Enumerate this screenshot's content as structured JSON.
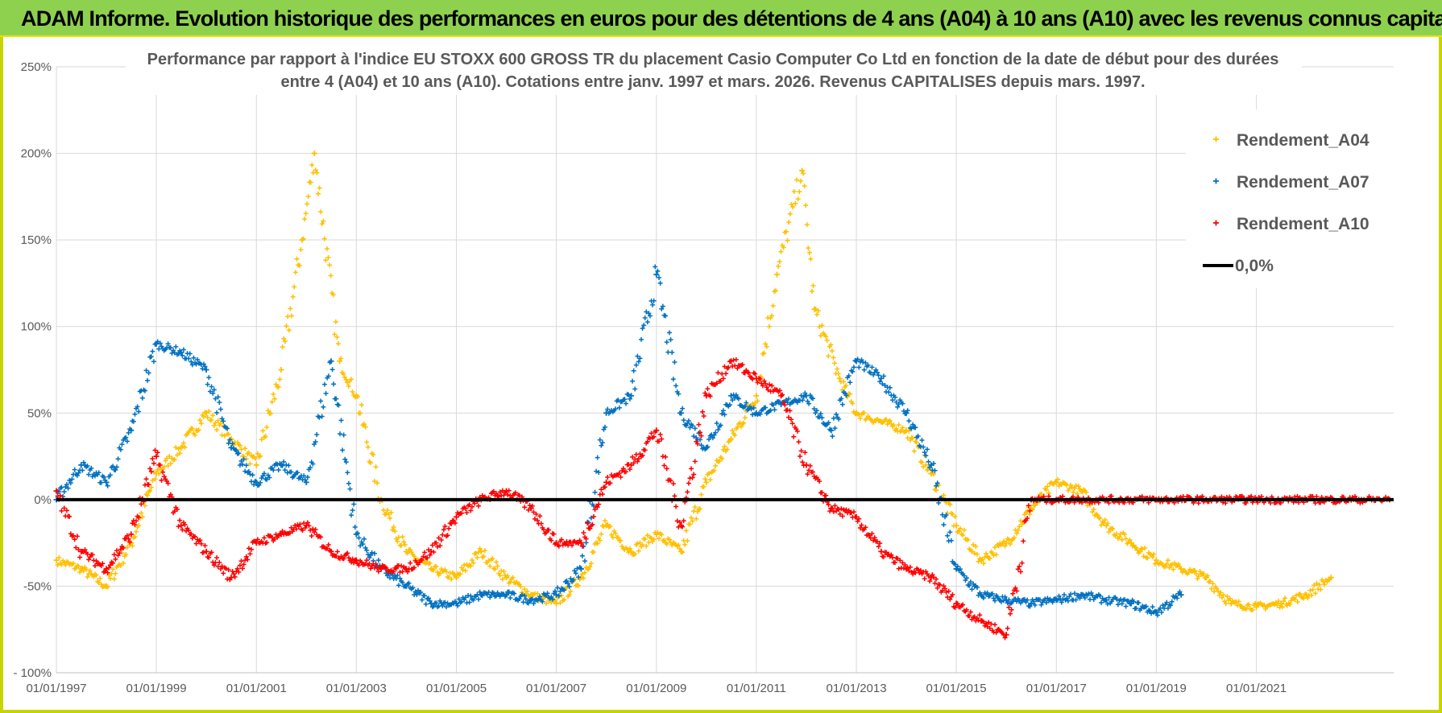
{
  "header": {
    "title": "ADAM Informe. Evolution historique des performances en euros pour des détentions de 4 ans (A04) à 10 ans (A10) avec les revenus connus capitalisés"
  },
  "colors": {
    "A04": "#ffc000",
    "A07": "#0070c0",
    "A10": "#ff0000",
    "zero": "#000000",
    "grid": "#d9d9d9",
    "header": "#8ed14f"
  },
  "chart_data": {
    "type": "scatter",
    "title": "Performance par rapport à l'indice EU STOXX 600 GROSS TR  du placement Casio Computer Co Ltd en fonction de la date de début pour des durées",
    "subtitle": "entre 4 (A04) et 10 ans (A10).  Cotations entre janv. 1997 et mars. 2026.  Revenus CAPITALISES depuis mars. 1997.",
    "xlim": [
      "1997-01-01",
      "2023-10-01"
    ],
    "ylim": [
      -100,
      250
    ],
    "y_ticks": [
      -100,
      -50,
      0,
      50,
      100,
      150,
      200,
      250
    ],
    "y_tick_labels": [
      "- 100%",
      "-50%",
      "0%",
      "50%",
      "100%",
      "150%",
      "200%",
      "250%"
    ],
    "x_ticks": [
      "1997-01-01",
      "1999-01-01",
      "2001-01-01",
      "2003-01-01",
      "2005-01-01",
      "2007-01-01",
      "2009-01-01",
      "2011-01-01",
      "2013-01-01",
      "2015-01-01",
      "2017-01-01",
      "2019-01-01",
      "2021-01-01"
    ],
    "x_tick_labels": [
      "01/01/1997",
      "01/01/1999",
      "01/01/2001",
      "01/01/2003",
      "01/01/2005",
      "01/01/2007",
      "01/01/2009",
      "01/01/2011",
      "01/01/2013",
      "01/01/2015",
      "01/01/2017",
      "01/01/2019",
      "01/01/2021"
    ],
    "grid": true,
    "legend_position": "top-right",
    "series": [
      {
        "name": "Rendement_A04",
        "marker": "+",
        "x": [
          "1997-01-01",
          "1997-07-01",
          "1998-01-01",
          "1998-07-01",
          "1999-01-01",
          "1999-07-01",
          "2000-01-01",
          "2000-07-01",
          "2001-01-01",
          "2001-07-01",
          "2001-12-01",
          "2002-03-01",
          "2002-09-01",
          "2003-01-01",
          "2003-07-01",
          "2004-01-01",
          "2004-07-01",
          "2005-01-01",
          "2005-07-01",
          "2006-01-01",
          "2006-07-01",
          "2007-01-01",
          "2007-07-01",
          "2008-01-01",
          "2008-07-01",
          "2009-01-01",
          "2009-07-01",
          "2010-01-01",
          "2010-07-01",
          "2011-01-01",
          "2011-06-01",
          "2011-12-01",
          "2012-03-01",
          "2012-09-01",
          "2013-01-01",
          "2013-07-01",
          "2014-01-01",
          "2014-07-01",
          "2015-01-01",
          "2015-07-01",
          "2016-01-01",
          "2016-07-01",
          "2017-01-01",
          "2017-07-01",
          "2018-01-01",
          "2018-07-01",
          "2019-01-01",
          "2019-07-01",
          "2020-01-01",
          "2020-07-01",
          "2021-01-01",
          "2021-07-01",
          "2022-01-01",
          "2022-07-01"
        ],
        "y": [
          -35,
          -40,
          -50,
          -25,
          15,
          30,
          50,
          35,
          20,
          75,
          150,
          200,
          80,
          60,
          0,
          -30,
          -40,
          -45,
          -30,
          -45,
          -55,
          -60,
          -45,
          -15,
          -30,
          -20,
          -30,
          10,
          35,
          60,
          130,
          190,
          110,
          70,
          50,
          45,
          40,
          15,
          -15,
          -35,
          -25,
          -5,
          10,
          5,
          -15,
          -25,
          -35,
          -40,
          -45,
          -60,
          -62,
          -60,
          -55,
          -45
        ]
      },
      {
        "name": "Rendement_A07",
        "marker": "+",
        "x": [
          "1997-01-01",
          "1997-07-01",
          "1998-01-01",
          "1998-07-01",
          "1999-01-01",
          "1999-07-01",
          "2000-01-01",
          "2000-07-01",
          "2001-01-01",
          "2001-07-01",
          "2002-01-01",
          "2002-07-01",
          "2003-01-01",
          "2003-07-01",
          "2004-01-01",
          "2004-07-01",
          "2005-01-01",
          "2005-07-01",
          "2006-01-01",
          "2006-07-01",
          "2007-01-01",
          "2007-07-01",
          "2008-01-01",
          "2008-07-01",
          "2009-01-01",
          "2009-07-01",
          "2010-01-01",
          "2010-07-01",
          "2011-01-01",
          "2011-07-01",
          "2012-01-01",
          "2012-07-01",
          "2013-01-01",
          "2013-07-01",
          "2014-01-01",
          "2014-07-01",
          "2015-01-01",
          "2015-07-01",
          "2016-01-01",
          "2016-07-01",
          "2017-01-01",
          "2017-07-01",
          "2018-01-01",
          "2018-07-01",
          "2019-01-01",
          "2019-07-01"
        ],
        "y": [
          0,
          20,
          10,
          40,
          90,
          85,
          75,
          30,
          10,
          20,
          10,
          80,
          -20,
          -40,
          -50,
          -60,
          -60,
          -55,
          -55,
          -58,
          -55,
          -40,
          50,
          60,
          130,
          50,
          30,
          60,
          50,
          55,
          60,
          40,
          80,
          70,
          50,
          20,
          -40,
          -55,
          -58,
          -60,
          -58,
          -55,
          -58,
          -60,
          -65,
          -55
        ]
      },
      {
        "name": "Rendement_A10",
        "marker": "+",
        "x": [
          "1997-01-01",
          "1997-07-01",
          "1998-01-01",
          "1998-07-01",
          "1999-01-01",
          "1999-07-01",
          "2000-01-01",
          "2000-07-01",
          "2001-01-01",
          "2001-07-01",
          "2002-01-01",
          "2002-07-01",
          "2003-01-01",
          "2003-07-01",
          "2004-01-01",
          "2004-07-01",
          "2005-01-01",
          "2005-07-01",
          "2006-01-01",
          "2006-07-01",
          "2007-01-01",
          "2007-07-01",
          "2008-01-01",
          "2008-07-01",
          "2009-01-01",
          "2009-07-01",
          "2010-01-01",
          "2010-07-01",
          "2011-01-01",
          "2011-07-01",
          "2012-01-01",
          "2012-07-01",
          "2013-01-01",
          "2013-07-01",
          "2014-01-01",
          "2014-07-01",
          "2015-01-01",
          "2015-07-01",
          "2016-01-01",
          "2016-07-01",
          "2017-01-01",
          "2018-01-01",
          "2019-01-01",
          "2020-01-01",
          "2021-01-01",
          "2022-01-01",
          "2023-01-01",
          "2023-09-01"
        ],
        "y": [
          5,
          -30,
          -40,
          -20,
          25,
          -15,
          -30,
          -45,
          -25,
          -20,
          -15,
          -30,
          -35,
          -40,
          -40,
          -30,
          -10,
          0,
          5,
          -5,
          -25,
          -25,
          10,
          20,
          40,
          -15,
          60,
          80,
          70,
          60,
          20,
          -5,
          -10,
          -30,
          -40,
          -45,
          -60,
          -70,
          -78,
          0,
          0,
          0,
          0,
          0,
          0,
          0,
          0,
          0
        ]
      },
      {
        "name": "0,0%",
        "type": "line",
        "x": [
          "1997-01-01",
          "2023-10-01"
        ],
        "y": [
          0,
          0
        ]
      }
    ]
  }
}
